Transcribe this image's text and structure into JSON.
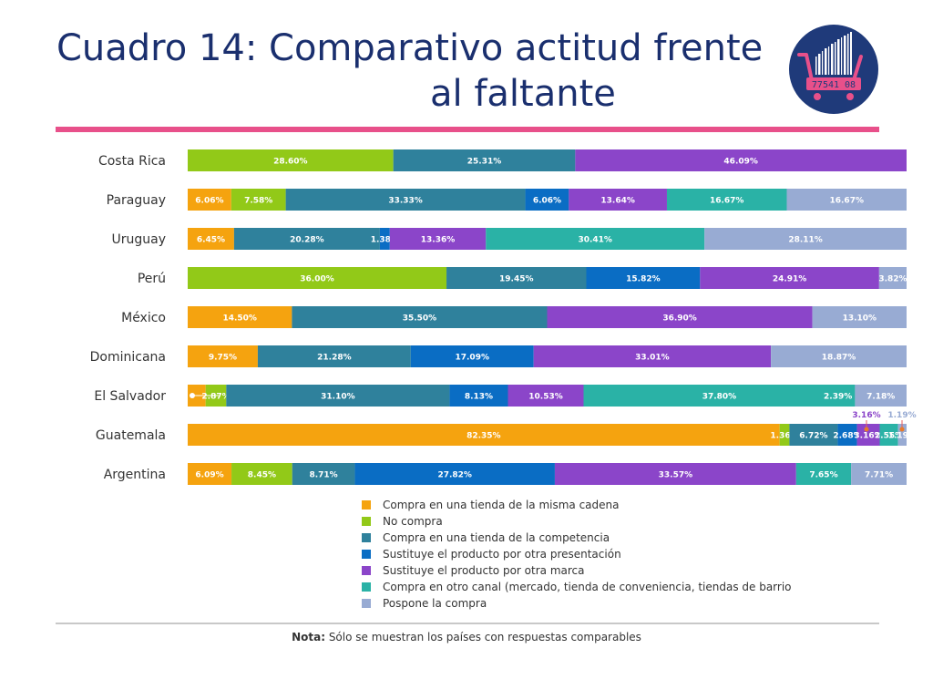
{
  "page": {
    "title_line1": "Cuadro 14: Comparativo actitud frente",
    "title_line2": "al faltante",
    "logo_text": "77541 08",
    "note_label": "Nota:",
    "note_text": " Sólo se muestran los países con respuestas comparables"
  },
  "colors": {
    "title": "#1a2f6e",
    "pink_rule": "#e8508a",
    "logo_bg": "#1f3a7a",
    "logo_cart": "#e8508a"
  },
  "chart_data": {
    "type": "bar",
    "orientation": "horizontal",
    "stacked": true,
    "percent_stacked": true,
    "xlim": [
      0,
      100
    ],
    "grid": false,
    "legend_position": "bottom",
    "categories": [
      "Costa Rica",
      "Paraguay",
      "Uruguay",
      "Perú",
      "México",
      "Dominicana",
      "El Salvador",
      "Guatemala",
      "Argentina"
    ],
    "series": [
      {
        "name": "Compra en una tienda de la misma cadena",
        "color": "#f5a30f",
        "values": [
          null,
          6.06,
          6.45,
          null,
          14.5,
          9.75,
          2.5,
          82.35,
          6.09
        ],
        "labels": [
          "",
          "6.06%",
          "6.45%",
          "",
          "14.50%",
          "9.75%",
          "",
          "82.35%",
          "6.09%"
        ]
      },
      {
        "name": "No compra",
        "color": "#92c918",
        "values": [
          28.6,
          7.58,
          null,
          36.0,
          null,
          null,
          2.87,
          1.36,
          8.45
        ],
        "labels": [
          "28.60%",
          "7.58%",
          "",
          "36.00%",
          "",
          "",
          "2.87%",
          "1.36%",
          "8.45%"
        ]
      },
      {
        "name": "Compra en una tienda de la competencia",
        "color": "#2f819c",
        "values": [
          25.31,
          33.33,
          20.28,
          19.45,
          35.5,
          21.28,
          31.1,
          6.72,
          8.71
        ],
        "labels": [
          "25.31%",
          "33.33%",
          "20.28%",
          "19.45%",
          "35.50%",
          "21.28%",
          "31.10%",
          "6.72%",
          "8.71%"
        ]
      },
      {
        "name": "Sustituye el producto por otra presentación",
        "color": "#0a6dc4",
        "values": [
          null,
          6.06,
          1.38,
          15.82,
          null,
          17.09,
          8.13,
          2.68,
          27.82
        ],
        "labels": [
          "",
          "6.06%",
          "1.38%",
          "15.82%",
          "",
          "17.09%",
          "8.13%",
          "2.68%",
          "27.82%"
        ]
      },
      {
        "name": "Sustituye el producto por otra marca",
        "color": "#8b45c9",
        "values": [
          46.09,
          13.64,
          13.36,
          24.91,
          36.9,
          33.01,
          10.53,
          3.16,
          33.57
        ],
        "labels": [
          "46.09%",
          "13.64%",
          "13.36%",
          "24.91%",
          "36.90%",
          "33.01%",
          "10.53%",
          "3.16%",
          "33.57%"
        ]
      },
      {
        "name": "Compra en otro canal (mercado, tienda de conveniencia, tiendas de barrio",
        "color": "#2ab2a6",
        "values": [
          null,
          16.67,
          30.41,
          null,
          null,
          null,
          37.8,
          2.55,
          7.65
        ],
        "labels": [
          "",
          "16.67%",
          "30.41%",
          "",
          "",
          "",
          "37.80%",
          "2.55%",
          "7.65%"
        ]
      },
      {
        "name": "Pospone la compra",
        "color": "#98abd3",
        "values": [
          null,
          16.67,
          28.11,
          3.82,
          13.1,
          18.87,
          7.18,
          1.19,
          7.71
        ],
        "labels": [
          "",
          "16.67%",
          "28.11%",
          "3.82%",
          "13.10%",
          "18.87%",
          "7.18%",
          "1.19%",
          "7.71%"
        ]
      }
    ],
    "extra_labels": [
      {
        "category": "El Salvador",
        "text": "2.39%"
      }
    ]
  }
}
